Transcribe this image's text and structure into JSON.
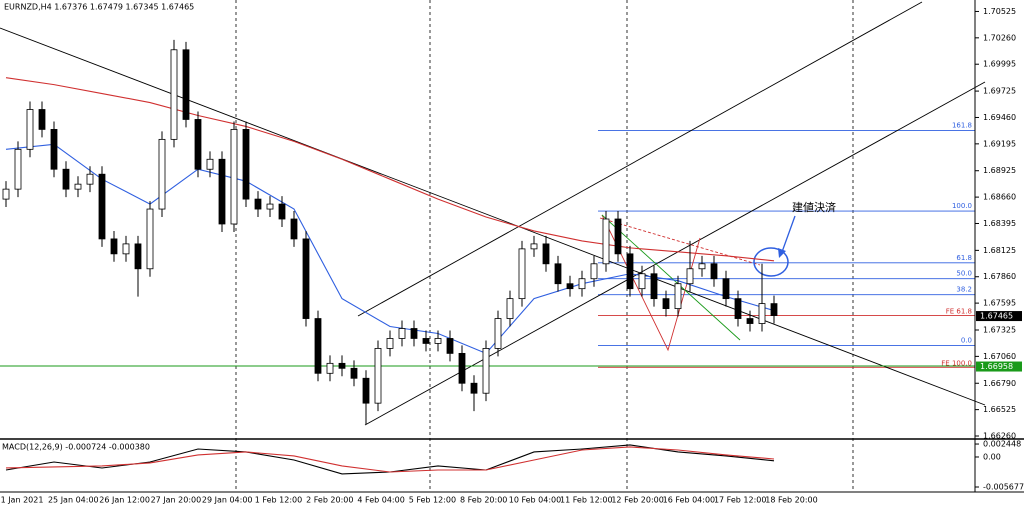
{
  "chart_data": [
    {
      "type": "candlestick",
      "title": "EURNZD,H4  1.67376 1.67479 1.67345 1.67465",
      "up_color": "#ffffff",
      "down_color": "#000000",
      "open": [
        1.6864,
        1.6874,
        1.6914,
        1.6954,
        1.6934,
        1.6894,
        1.6874,
        1.6879,
        1.6889,
        1.6824,
        1.6809,
        1.6819,
        1.6794,
        1.6854,
        1.6924,
        1.7014,
        1.6944,
        1.6894,
        1.6904,
        1.6839,
        1.6934,
        1.6864,
        1.6854,
        1.6859,
        1.6844,
        1.6824,
        1.6744,
        1.6689,
        1.6699,
        1.6694,
        1.6684,
        1.6659,
        1.6714,
        1.6724,
        1.6734,
        1.6724,
        1.6719,
        1.6724,
        1.6709,
        1.6679,
        1.6669,
        1.6714,
        1.6744,
        1.6764,
        1.6814,
        1.6819,
        1.6799,
        1.6779,
        1.6774,
        1.6784,
        1.6799,
        1.6844,
        1.6809,
        1.6774,
        1.6789,
        1.6764,
        1.6754,
        1.6779,
        1.6794,
        1.6799,
        1.6784,
        1.6764,
        1.6744,
        1.6739,
        1.6759
      ],
      "high": [
        1.6882,
        1.6922,
        1.6962,
        1.6962,
        1.6942,
        1.6902,
        1.6887,
        1.6897,
        1.6897,
        1.6832,
        1.6827,
        1.6827,
        1.6862,
        1.6932,
        1.7024,
        1.7022,
        1.6952,
        1.6912,
        1.6912,
        1.6942,
        1.6942,
        1.6872,
        1.6867,
        1.6867,
        1.6852,
        1.6832,
        1.6752,
        1.6707,
        1.6707,
        1.6702,
        1.6692,
        1.6722,
        1.6732,
        1.6742,
        1.6742,
        1.6732,
        1.6732,
        1.6732,
        1.6717,
        1.6687,
        1.6722,
        1.6752,
        1.6772,
        1.6822,
        1.6827,
        1.6827,
        1.6807,
        1.6787,
        1.6792,
        1.6807,
        1.6852,
        1.6852,
        1.6817,
        1.6797,
        1.6797,
        1.6772,
        1.6787,
        1.6822,
        1.6807,
        1.6807,
        1.6792,
        1.6772,
        1.6752,
        1.6799,
        1.6767
      ],
      "low": [
        1.6856,
        1.6866,
        1.6906,
        1.6926,
        1.6886,
        1.6866,
        1.6866,
        1.6871,
        1.6816,
        1.6801,
        1.6801,
        1.6766,
        1.6786,
        1.6846,
        1.6916,
        1.6936,
        1.6886,
        1.6886,
        1.6831,
        1.6831,
        1.6856,
        1.6846,
        1.6846,
        1.6836,
        1.6816,
        1.6736,
        1.6681,
        1.6681,
        1.6686,
        1.6676,
        1.6638,
        1.6651,
        1.6706,
        1.6716,
        1.6716,
        1.6711,
        1.6711,
        1.6701,
        1.6671,
        1.6651,
        1.6661,
        1.6706,
        1.6736,
        1.6756,
        1.6806,
        1.6791,
        1.6771,
        1.6766,
        1.6766,
        1.6776,
        1.6791,
        1.6801,
        1.6766,
        1.6766,
        1.6756,
        1.6746,
        1.6746,
        1.6771,
        1.6786,
        1.6776,
        1.6756,
        1.6736,
        1.6731,
        1.6731,
        1.6739
      ],
      "close": [
        1.6874,
        1.6914,
        1.6954,
        1.6934,
        1.6894,
        1.6874,
        1.6879,
        1.6889,
        1.6824,
        1.6809,
        1.6819,
        1.6794,
        1.6854,
        1.6924,
        1.7014,
        1.6944,
        1.6894,
        1.6904,
        1.6839,
        1.6934,
        1.6864,
        1.6854,
        1.6859,
        1.6844,
        1.6824,
        1.6744,
        1.6689,
        1.6699,
        1.6694,
        1.6684,
        1.6659,
        1.6714,
        1.6724,
        1.6734,
        1.6724,
        1.6719,
        1.6724,
        1.6709,
        1.6679,
        1.6669,
        1.6714,
        1.6744,
        1.6764,
        1.6814,
        1.6819,
        1.6799,
        1.6779,
        1.6774,
        1.6784,
        1.6799,
        1.6844,
        1.6809,
        1.6774,
        1.6789,
        1.6764,
        1.6754,
        1.6779,
        1.6794,
        1.6799,
        1.6784,
        1.6764,
        1.6744,
        1.6739,
        1.6759,
        1.6747
      ],
      "series": [
        {
          "color": "#2f5fe0",
          "x": [
            0,
            4,
            8,
            12,
            16,
            20,
            24,
            28,
            32,
            36,
            40,
            44,
            48,
            52,
            56,
            60,
            64
          ],
          "values": [
            1.6914,
            1.6919,
            1.6884,
            1.6859,
            1.6894,
            1.6882,
            1.6854,
            1.6764,
            1.6736,
            1.6729,
            1.6709,
            1.6764,
            1.6779,
            1.6789,
            1.6782,
            1.6766,
            1.6752
          ]
        },
        {
          "color": "#d03030",
          "x": [
            0,
            4,
            8,
            12,
            16,
            20,
            24,
            28,
            32,
            36,
            40,
            44,
            48,
            52,
            56,
            60,
            64
          ],
          "values": [
            1.6986,
            1.6979,
            1.697,
            1.6961,
            1.6948,
            1.6937,
            1.6922,
            1.6904,
            1.6884,
            1.6864,
            1.6846,
            1.6832,
            1.6822,
            1.6815,
            1.6811,
            1.6807,
            1.6802
          ]
        }
      ],
      "ylim": [
        1.6624,
        1.7062
      ],
      "yticks": [
        1.70525,
        {
          "value": 1.7026,
          "label": "1.70260"
        },
        1.69995,
        1.69725,
        {
          "value": 1.6946,
          "label": "1.69460"
        },
        1.69195,
        1.68925,
        {
          "value": 1.6866,
          "label": "1.68660"
        },
        1.68395,
        1.68125,
        {
          "value": 1.6786,
          "label": "1.67860"
        },
        1.67595,
        1.67325,
        {
          "value": 1.6706,
          "label": "1.67060"
        },
        {
          "value": 1.6679,
          "label": "1.66790"
        },
        1.66525,
        {
          "value": 1.6626,
          "label": "1.66260"
        }
      ],
      "x_labels": [
        "1 Jan 2021",
        "25 Jan 04:00",
        "26 Jan 12:00",
        "27 Jan 20:00",
        "29 Jan 04:00",
        "1 Feb 12:00",
        "2 Feb 20:00",
        "4 Feb 04:00",
        "5 Feb 12:00",
        "8 Feb 20:00",
        "10 Feb 04:00",
        "11 Feb 12:00",
        "12 Feb 20:00",
        "16 Feb 04:00",
        "17 Feb 12:00",
        "18 Feb 20:00"
      ],
      "fib_levels": [
        {
          "label": "161.8",
          "price": 1.6933
        },
        {
          "label": "100.0",
          "price": 1.6852
        },
        {
          "label": "61.8",
          "price": 1.68
        },
        {
          "label": "50.0",
          "price": 1.6784
        },
        {
          "label": "38.2",
          "price": 1.6768
        },
        {
          "label": "0.0",
          "price": 1.6717
        }
      ],
      "fe_levels": [
        {
          "label": "FE 61.8",
          "price": 1.6747
        },
        {
          "label": "FE 100.0",
          "price": 1.6695
        }
      ],
      "price_markers": [
        {
          "value": 1.67465,
          "color": "#000000"
        },
        {
          "value": 1.66958,
          "color": "#1a9a1a"
        }
      ],
      "annotation": "建値決済"
    },
    {
      "type": "macd",
      "title": "MACD(12,26,9) -0.000724 -0.000380",
      "x": [
        0,
        4,
        8,
        12,
        16,
        20,
        24,
        28,
        32,
        36,
        40,
        44,
        48,
        52,
        56,
        60,
        64
      ],
      "series": [
        {
          "color": "#000000",
          "values": [
            -0.00246,
            -0.00095,
            -0.00208,
            -0.00095,
            0.00151,
            0.00095,
            -0.00057,
            -0.00321,
            -0.00284,
            -0.0017,
            -0.00246,
            0.00095,
            0.00151,
            0.00227,
            0.00095,
            0.00019,
            -0.000724
          ]
        },
        {
          "color": "#d03030",
          "values": [
            -0.00208,
            -0.00189,
            -0.0017,
            -0.00113,
            0.00038,
            0.00095,
            0.00019,
            -0.0017,
            -0.00284,
            -0.00246,
            -0.00246,
            -0.00057,
            0.00132,
            0.00189,
            0.00132,
            0.00038,
            -0.00038
          ]
        }
      ],
      "ylim": [
        -0.00662,
        0.00321
      ],
      "yticks": [
        0.002448,
        {
          "value": 0,
          "label": "0.00"
        },
        -0.005677
      ]
    }
  ]
}
